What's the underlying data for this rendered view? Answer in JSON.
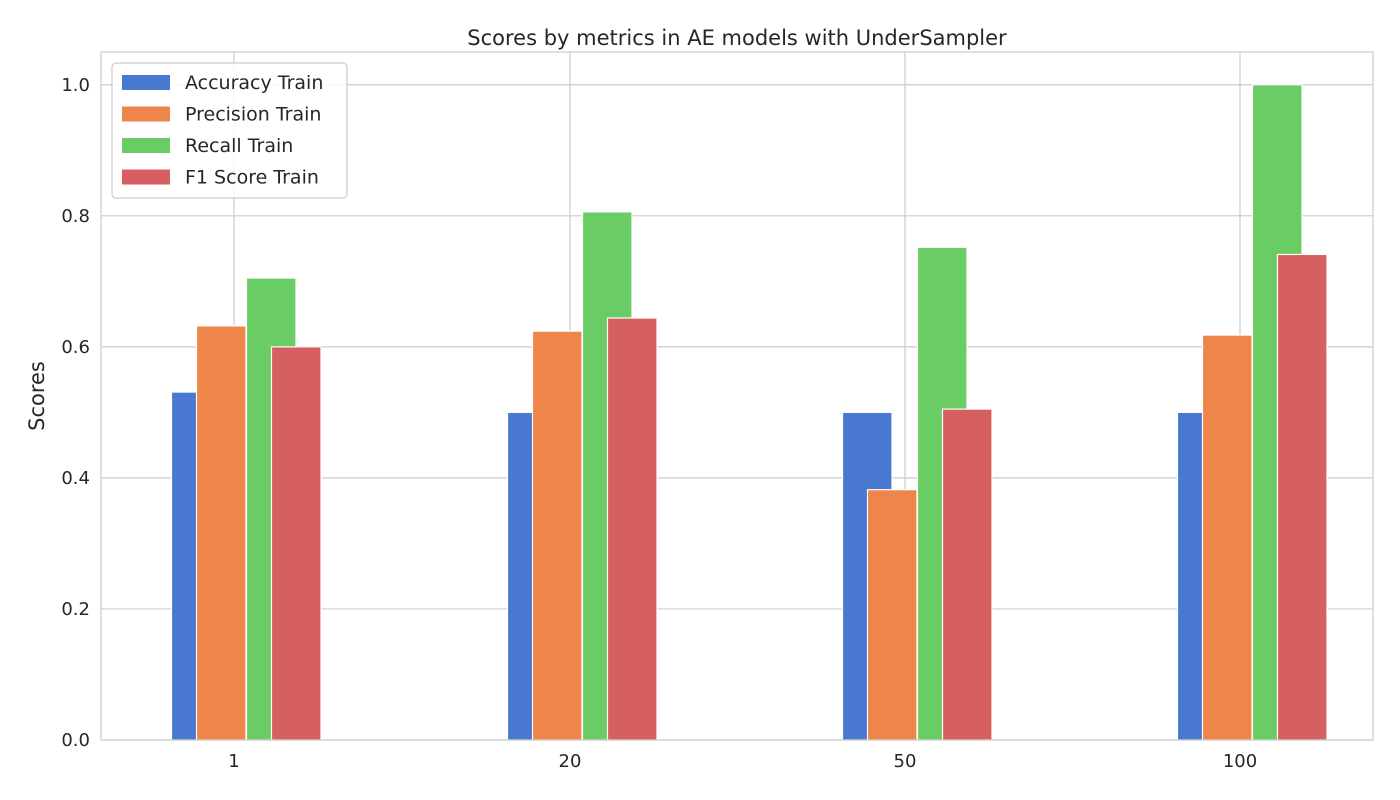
{
  "chart_data": {
    "type": "bar",
    "title": "Scores by metrics in AE models with UnderSampler",
    "xlabel": "",
    "ylabel": "Scores",
    "categories": [
      "1",
      "20",
      "50",
      "100"
    ],
    "ylim": [
      0,
      1.05
    ],
    "yticks": [
      "0.0",
      "0.2",
      "0.4",
      "0.6",
      "0.8",
      "1.0"
    ],
    "grid": true,
    "legend_position": "upper-left",
    "series": [
      {
        "name": "Accuracy Train",
        "color": "#4878d0",
        "values": [
          0.531,
          0.5,
          0.5,
          0.5
        ]
      },
      {
        "name": "Precision Train",
        "color": "#ee854a",
        "values": [
          0.632,
          0.624,
          0.382,
          0.618
        ]
      },
      {
        "name": "Recall Train",
        "color": "#6acc64",
        "values": [
          0.705,
          0.806,
          0.752,
          1.0
        ]
      },
      {
        "name": "F1 Score Train",
        "color": "#d65f5f",
        "values": [
          0.6,
          0.644,
          0.505,
          0.741
        ]
      }
    ]
  }
}
